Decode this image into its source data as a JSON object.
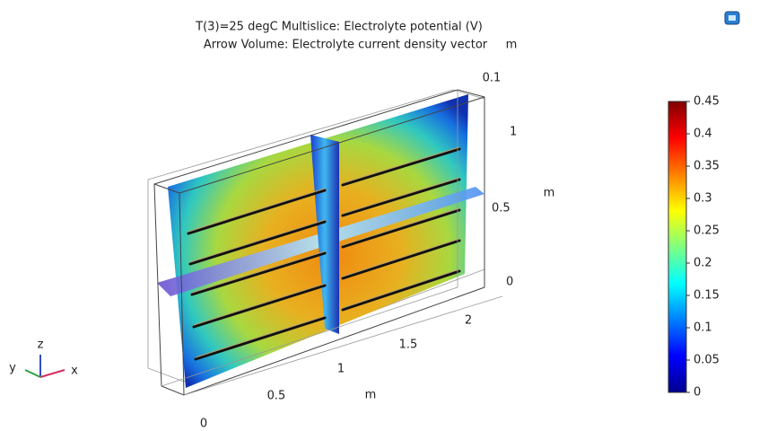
{
  "title": [
    "T(3)=25 degC   Multislice: Electrolyte potential (V)",
    "Arrow Volume: Electrolyte current density vector"
  ],
  "axes": {
    "x": {
      "label": "m",
      "ticks": [
        0,
        0.5,
        1,
        1.5,
        2
      ]
    },
    "y": {
      "label": "m",
      "ticks": [
        0.1
      ]
    },
    "z": {
      "label": "m",
      "ticks": [
        0,
        0.5,
        1
      ]
    }
  },
  "triad": {
    "x": "x",
    "y": "y",
    "z": "z"
  },
  "colorbar": {
    "range": [
      0,
      0.45
    ],
    "ticks": [
      0,
      0.05,
      0.1,
      0.15,
      0.2,
      0.25,
      0.3,
      0.35,
      0.4,
      0.45
    ]
  }
}
